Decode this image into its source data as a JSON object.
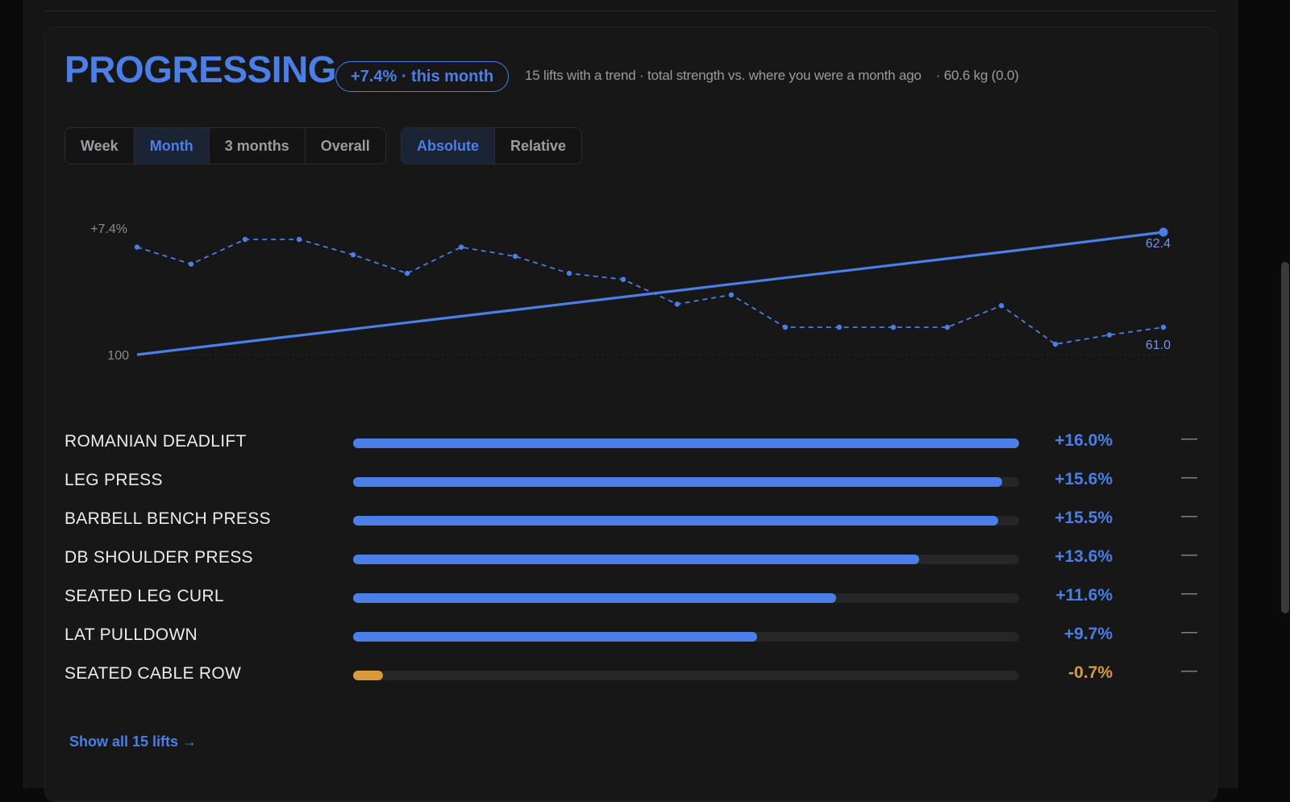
{
  "header": {
    "title": "PROGRESSING",
    "pill": "+7.4% · this month",
    "subtitle_main": "15 lifts with a trend · total strength vs. where you were a month ago",
    "subtitle_extra": "· 60.6 kg (0.0)"
  },
  "range_tabs": [
    {
      "label": "Week",
      "active": false
    },
    {
      "label": "Month",
      "active": true
    },
    {
      "label": "3 months",
      "active": false
    },
    {
      "label": "Overall",
      "active": false
    }
  ],
  "mode_tabs": [
    {
      "label": "Absolute",
      "active": true
    },
    {
      "label": "Relative",
      "active": false
    }
  ],
  "chart_data": {
    "type": "line",
    "y_labels": {
      "top": "+7.4%",
      "bottom": "100"
    },
    "end_labels": {
      "solid": "62.4",
      "dashed": "61.0"
    },
    "colors": {
      "line": "#4a7fe8",
      "label": "#6f95e6",
      "axis": "#8a8a90"
    },
    "series": [
      {
        "style": "solid",
        "values": [
          100,
          101.05,
          102.1,
          103.15,
          104.2,
          105.25,
          106.3,
          107.4
        ]
      },
      {
        "style": "dashed",
        "values": [
          5.7,
          4.6,
          6.2,
          6.2,
          5.2,
          4.0,
          5.7,
          5.1,
          4.0,
          3.6,
          2.0,
          2.6,
          0.5,
          0.5,
          0.5,
          0.5,
          1.9,
          -0.6,
          0.0,
          0.5
        ]
      }
    ]
  },
  "lifts": [
    {
      "name": "ROMANIAN DEADLIFT",
      "value": "+16.0%",
      "pct": 16.0,
      "trend": "—"
    },
    {
      "name": "LEG PRESS",
      "value": "+15.6%",
      "pct": 15.6,
      "trend": "—"
    },
    {
      "name": "BARBELL BENCH PRESS",
      "value": "+15.5%",
      "pct": 15.5,
      "trend": "—"
    },
    {
      "name": "DB SHOULDER PRESS",
      "value": "+13.6%",
      "pct": 13.6,
      "trend": "—"
    },
    {
      "name": "SEATED LEG CURL",
      "value": "+11.6%",
      "pct": 11.6,
      "trend": "—"
    },
    {
      "name": "LAT PULLDOWN",
      "value": "+9.7%",
      "pct": 9.7,
      "trend": "—"
    },
    {
      "name": "SEATED CABLE ROW",
      "value": "-0.7%",
      "pct": -0.7,
      "trend": "—"
    }
  ],
  "lift_scale_max": 16.0,
  "show_all": "Show all 15 lifts →",
  "colors": {
    "accent": "#4a7fe8",
    "negative": "#d89a3a"
  }
}
